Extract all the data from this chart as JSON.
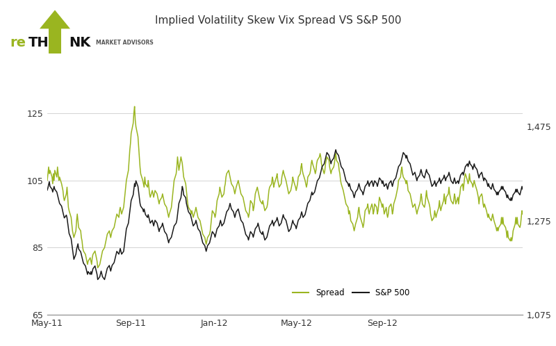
{
  "title": "Implied Volatility Skew Vix Spread VS S&P 500",
  "left_ylim": [
    65,
    135
  ],
  "right_ylim": [
    1075,
    1575
  ],
  "left_yticks": [
    65,
    85,
    105,
    125
  ],
  "right_yticks": [
    1075,
    1275,
    1475
  ],
  "right_ytick_labels": [
    "1,075",
    "1,275",
    "1,475"
  ],
  "spread_color": "#9ab520",
  "sp500_color": "#1a1a1a",
  "background_color": "#ffffff",
  "legend_spread": "Spread",
  "legend_sp500": "S&P 500",
  "logo_color": "#9ab520",
  "logo_subtitle": "MARKET ADVISORS",
  "x_tick_labels": [
    "May-11",
    "Sep-11",
    "Jan-12",
    "May-12",
    "Sep-12"
  ],
  "spread_data": [
    105,
    107,
    109,
    107,
    108,
    106,
    104,
    107,
    105,
    108,
    106,
    109,
    107,
    105,
    106,
    104,
    103,
    102,
    100,
    99,
    101,
    103,
    100,
    97,
    96,
    94,
    92,
    90,
    89,
    88,
    90,
    93,
    95,
    93,
    91,
    90,
    88,
    87,
    85,
    84,
    83,
    82,
    81,
    80,
    81,
    82,
    81,
    80,
    82,
    83,
    84,
    83,
    82,
    81,
    79,
    80,
    81,
    82,
    83,
    84,
    85,
    86,
    87,
    88,
    89,
    90,
    89,
    88,
    89,
    90,
    91,
    92,
    93,
    94,
    95,
    94,
    96,
    97,
    96,
    95,
    97,
    99,
    101,
    103,
    105,
    108,
    111,
    114,
    116,
    119,
    122,
    125,
    127,
    123,
    121,
    118,
    115,
    112,
    109,
    107,
    105,
    104,
    103,
    106,
    104,
    103,
    105,
    103,
    101,
    100,
    102,
    101,
    100,
    101,
    102,
    101,
    100,
    99,
    98,
    99,
    100,
    101,
    100,
    99,
    98,
    97,
    96,
    95,
    94,
    95,
    97,
    99,
    101,
    103,
    105,
    107,
    109,
    112,
    110,
    108,
    112,
    111,
    110,
    108,
    106,
    104,
    102,
    100,
    98,
    97,
    96,
    95,
    96,
    95,
    94,
    96,
    97,
    96,
    95,
    94,
    93,
    92,
    91,
    90,
    89,
    88,
    87,
    86,
    87,
    88,
    89,
    90,
    92,
    94,
    96,
    95,
    94,
    95,
    97,
    99,
    101,
    103,
    102,
    101,
    100,
    101,
    103,
    104,
    106,
    107,
    108,
    107,
    106,
    105,
    104,
    103,
    102,
    101,
    102,
    103,
    105,
    104,
    103,
    102,
    101,
    100,
    99,
    98,
    97,
    96,
    95,
    94,
    95,
    97,
    99,
    98,
    96,
    97,
    99,
    101,
    103,
    102,
    101,
    100,
    99,
    98,
    99,
    98,
    97,
    96,
    97,
    98,
    100,
    102,
    103,
    104,
    106,
    105,
    103,
    104,
    106,
    107,
    105,
    104,
    103,
    104,
    106,
    107,
    108,
    107,
    105,
    104,
    103,
    102,
    101,
    102,
    103,
    104,
    106,
    105,
    103,
    102,
    103,
    104,
    106,
    107,
    109,
    110,
    108,
    107,
    105,
    104,
    103,
    104,
    106,
    107,
    108,
    110,
    111,
    110,
    108,
    107,
    108,
    110,
    111,
    112,
    113,
    112,
    110,
    109,
    107,
    108,
    110,
    111,
    112,
    111,
    109,
    108,
    107,
    108,
    109,
    110,
    112,
    113,
    111,
    110,
    108,
    107,
    105,
    104,
    102,
    101,
    100,
    99,
    98,
    97,
    95,
    96,
    95,
    93,
    92,
    91,
    90,
    91,
    92,
    94,
    96,
    97,
    95,
    94,
    92,
    91,
    92,
    94,
    96,
    97,
    98,
    96,
    95,
    96,
    98,
    97,
    95,
    96,
    98,
    97,
    95,
    96,
    98,
    100,
    98,
    97,
    98,
    97,
    95,
    97,
    95,
    94,
    95,
    97,
    98,
    97,
    95,
    96,
    98,
    100,
    101,
    102,
    103,
    105,
    106,
    108,
    109,
    107,
    106,
    105,
    104,
    105,
    104,
    102,
    101,
    100,
    99,
    98,
    97,
    98,
    97,
    96,
    95,
    96,
    98,
    99,
    101,
    100,
    98,
    97,
    98,
    100,
    102,
    100,
    98,
    97,
    95,
    94,
    93,
    94,
    96,
    95,
    94,
    95,
    97,
    99,
    97,
    96,
    97,
    99,
    101,
    99,
    98,
    100,
    101,
    103,
    101,
    100,
    99,
    98,
    99,
    101,
    100,
    98,
    100,
    98,
    100,
    101,
    103,
    104,
    102,
    104,
    106,
    107,
    105,
    104,
    105,
    107,
    105,
    104,
    103,
    104,
    105,
    104,
    102,
    101,
    100,
    98,
    100,
    101,
    100,
    98,
    97,
    98,
    96,
    95,
    94,
    95,
    94,
    93,
    94,
    95,
    94,
    93,
    91,
    90,
    91,
    90,
    91,
    92,
    94,
    92,
    94,
    92,
    91,
    90,
    88,
    90,
    88,
    87,
    88,
    87,
    88,
    90,
    92,
    94,
    92,
    94,
    92,
    91,
    92,
    94,
    96,
    95
  ],
  "sp500_data": [
    1340,
    1345,
    1352,
    1358,
    1348,
    1342,
    1336,
    1342,
    1348,
    1342,
    1336,
    1330,
    1324,
    1318,
    1312,
    1306,
    1300,
    1293,
    1287,
    1281,
    1287,
    1281,
    1270,
    1259,
    1248,
    1237,
    1226,
    1215,
    1204,
    1193,
    1204,
    1215,
    1220,
    1226,
    1215,
    1209,
    1203,
    1197,
    1191,
    1185,
    1179,
    1173,
    1167,
    1161,
    1167,
    1161,
    1167,
    1161,
    1167,
    1173,
    1179,
    1173,
    1167,
    1161,
    1150,
    1156,
    1162,
    1168,
    1162,
    1156,
    1150,
    1156,
    1162,
    1168,
    1174,
    1180,
    1174,
    1168,
    1174,
    1180,
    1186,
    1192,
    1198,
    1204,
    1210,
    1204,
    1210,
    1216,
    1210,
    1204,
    1210,
    1222,
    1234,
    1246,
    1258,
    1270,
    1282,
    1294,
    1306,
    1318,
    1330,
    1342,
    1354,
    1348,
    1360,
    1348,
    1336,
    1324,
    1312,
    1306,
    1300,
    1294,
    1300,
    1294,
    1288,
    1282,
    1288,
    1282,
    1276,
    1270,
    1276,
    1270,
    1264,
    1270,
    1276,
    1270,
    1264,
    1258,
    1252,
    1258,
    1264,
    1270,
    1264,
    1258,
    1252,
    1246,
    1240,
    1234,
    1228,
    1234,
    1240,
    1246,
    1252,
    1258,
    1264,
    1270,
    1276,
    1288,
    1300,
    1312,
    1324,
    1336,
    1348,
    1342,
    1330,
    1324,
    1312,
    1306,
    1300,
    1294,
    1288,
    1282,
    1276,
    1270,
    1264,
    1270,
    1276,
    1270,
    1264,
    1258,
    1252,
    1246,
    1240,
    1234,
    1228,
    1222,
    1216,
    1210,
    1216,
    1222,
    1228,
    1234,
    1240,
    1246,
    1252,
    1246,
    1240,
    1246,
    1252,
    1258,
    1264,
    1270,
    1276,
    1270,
    1264,
    1270,
    1276,
    1282,
    1288,
    1294,
    1300,
    1306,
    1312,
    1306,
    1300,
    1294,
    1288,
    1282,
    1288,
    1294,
    1300,
    1294,
    1288,
    1282,
    1276,
    1270,
    1264,
    1258,
    1252,
    1246,
    1240,
    1234,
    1240,
    1246,
    1252,
    1246,
    1240,
    1246,
    1252,
    1258,
    1264,
    1270,
    1264,
    1258,
    1252,
    1246,
    1252,
    1246,
    1240,
    1234,
    1240,
    1246,
    1252,
    1258,
    1264,
    1270,
    1276,
    1270,
    1264,
    1270,
    1276,
    1282,
    1276,
    1270,
    1264,
    1270,
    1276,
    1282,
    1288,
    1282,
    1276,
    1270,
    1264,
    1258,
    1252,
    1258,
    1264,
    1270,
    1276,
    1270,
    1264,
    1258,
    1264,
    1270,
    1276,
    1282,
    1288,
    1294,
    1288,
    1282,
    1288,
    1294,
    1300,
    1306,
    1312,
    1318,
    1324,
    1330,
    1336,
    1330,
    1336,
    1342,
    1348,
    1354,
    1360,
    1366,
    1372,
    1378,
    1384,
    1390,
    1396,
    1402,
    1408,
    1414,
    1420,
    1414,
    1408,
    1402,
    1396,
    1402,
    1408,
    1414,
    1420,
    1426,
    1420,
    1414,
    1408,
    1402,
    1396,
    1390,
    1384,
    1378,
    1372,
    1366,
    1360,
    1354,
    1348,
    1354,
    1348,
    1342,
    1336,
    1330,
    1324,
    1330,
    1336,
    1342,
    1348,
    1354,
    1348,
    1342,
    1336,
    1330,
    1336,
    1342,
    1348,
    1354,
    1360,
    1354,
    1348,
    1354,
    1360,
    1354,
    1348,
    1354,
    1360,
    1354,
    1348,
    1354,
    1360,
    1366,
    1360,
    1354,
    1360,
    1354,
    1348,
    1354,
    1348,
    1342,
    1348,
    1354,
    1360,
    1354,
    1348,
    1354,
    1360,
    1366,
    1372,
    1378,
    1384,
    1390,
    1396,
    1402,
    1408,
    1414,
    1420,
    1414,
    1408,
    1414,
    1408,
    1402,
    1396,
    1390,
    1384,
    1378,
    1372,
    1378,
    1372,
    1366,
    1360,
    1366,
    1372,
    1378,
    1384,
    1378,
    1372,
    1366,
    1372,
    1378,
    1384,
    1378,
    1372,
    1366,
    1360,
    1354,
    1348,
    1354,
    1360,
    1354,
    1348,
    1354,
    1360,
    1366,
    1360,
    1354,
    1360,
    1366,
    1372,
    1366,
    1360,
    1366,
    1372,
    1378,
    1372,
    1366,
    1360,
    1354,
    1360,
    1366,
    1360,
    1354,
    1360,
    1354,
    1360,
    1366,
    1372,
    1378,
    1372,
    1378,
    1384,
    1390,
    1396,
    1390,
    1396,
    1402,
    1396,
    1390,
    1384,
    1390,
    1396,
    1390,
    1384,
    1378,
    1372,
    1366,
    1372,
    1378,
    1372,
    1366,
    1360,
    1366,
    1360,
    1354,
    1348,
    1354,
    1348,
    1342,
    1348,
    1354,
    1348,
    1342,
    1336,
    1330,
    1336,
    1330,
    1336,
    1342,
    1348,
    1342,
    1348,
    1342,
    1336,
    1330,
    1324,
    1330,
    1324,
    1318,
    1324,
    1318,
    1324,
    1330,
    1336,
    1342,
    1336,
    1342,
    1336,
    1330,
    1336,
    1342,
    1348,
    1342
  ]
}
